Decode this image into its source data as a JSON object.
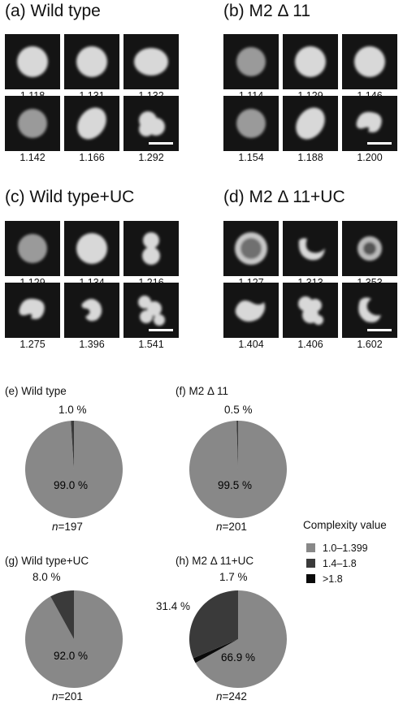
{
  "panels": [
    {
      "title": "(a) Wild type",
      "values": [
        "1.118",
        "1.131",
        "1.132",
        "1.142",
        "1.166",
        "1.292"
      ]
    },
    {
      "title": "(b) M2 Δ 11",
      "values": [
        "1.114",
        "1.129",
        "1.146",
        "1.154",
        "1.188",
        "1.200"
      ]
    },
    {
      "title": "(c) Wild type+UC",
      "values": [
        "1.129",
        "1.134",
        "1.216",
        "1.275",
        "1.396",
        "1.541"
      ]
    },
    {
      "title": "(d) M2 Δ 11+UC",
      "values": [
        "1.127",
        "1.313",
        "1.353",
        "1.404",
        "1.406",
        "1.602"
      ]
    }
  ],
  "pies": [
    {
      "title": "(e) Wild type",
      "n_prefix": "n",
      "n_value": "=197",
      "labels": {
        "main": "99.0 %",
        "minor": "1.0 %"
      }
    },
    {
      "title": "(f) M2 Δ 11",
      "n_prefix": "n",
      "n_value": "=201",
      "labels": {
        "main": "99.5 %",
        "minor": "0.5 %"
      }
    },
    {
      "title": "(g) Wild type+UC",
      "n_prefix": "n",
      "n_value": "=201",
      "labels": {
        "main": "92.0 %",
        "minor": "8.0 %"
      }
    },
    {
      "title": "(h) M2 Δ 11+UC",
      "n_prefix": "n",
      "n_value": "=242",
      "labels": {
        "main": "66.9 %",
        "minor": "31.4 %",
        "extra": "1.7 %"
      }
    }
  ],
  "legend": {
    "title": "Complexity value",
    "items": [
      {
        "label": "1.0–1.399",
        "color": "#888888"
      },
      {
        "label": "1.4–1.8",
        "color": "#3a3a3a"
      },
      {
        "label": ">1.8",
        "color": "#0a0a0a"
      }
    ]
  },
  "chart_data": [
    {
      "type": "pie",
      "title": "(e) Wild type",
      "categories": [
        "1.0–1.399",
        "1.4–1.8",
        ">1.8"
      ],
      "values": [
        99.0,
        1.0,
        0
      ]
    },
    {
      "type": "pie",
      "title": "(f) M2 Δ 11",
      "categories": [
        "1.0–1.399",
        "1.4–1.8",
        ">1.8"
      ],
      "values": [
        99.5,
        0.5,
        0
      ]
    },
    {
      "type": "pie",
      "title": "(g) Wild type+UC",
      "categories": [
        "1.0–1.399",
        "1.4–1.8",
        ">1.8"
      ],
      "values": [
        92.0,
        8.0,
        0
      ]
    },
    {
      "type": "pie",
      "title": "(h) M2 Δ 11+UC",
      "categories": [
        "1.0–1.399",
        "1.4–1.8",
        ">1.8"
      ],
      "values": [
        66.9,
        31.4,
        1.7
      ]
    }
  ]
}
